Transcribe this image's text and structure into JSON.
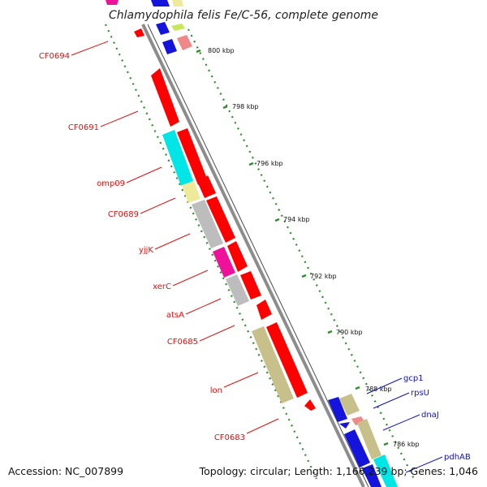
{
  "header": {
    "title": "Chlamydophila felis Fe/C-56, complete genome"
  },
  "footer": {
    "accession": "Accession: NC_007899",
    "topology": "Topology: circular; Length: 1,166,239 bp; Genes: 1,046"
  },
  "ticks": [
    "800 kbp",
    "798 kbp",
    "796 kbp",
    "794 kbp",
    "792 kbp",
    "790 kbp",
    "788 kbp",
    "786 kbp"
  ],
  "left_labels": [
    "CF0694",
    "CF0691",
    "omp09",
    "CF0689",
    "yjjK",
    "xerC",
    "atsA",
    "CF0685",
    "lon",
    "CF0683"
  ],
  "right_labels": [
    "gcp1",
    "rpsU",
    "dnaJ",
    "pdhAB"
  ],
  "colors": {
    "backbone": "#8c8c8c",
    "dotted_track": "#2e8b2e",
    "left_label": "#dd1111",
    "right_label": "#1111bb",
    "red_gene": "#ff0000",
    "cyan_gene": "#00e5e5",
    "khaki_gene": "#c8c08a",
    "gray_gene": "#bdbdbd",
    "magenta_gene": "#ee1199",
    "yellow_gene": "#eeea9a",
    "blue_gene": "#1414dd",
    "pink_gene": "#ef8888"
  }
}
